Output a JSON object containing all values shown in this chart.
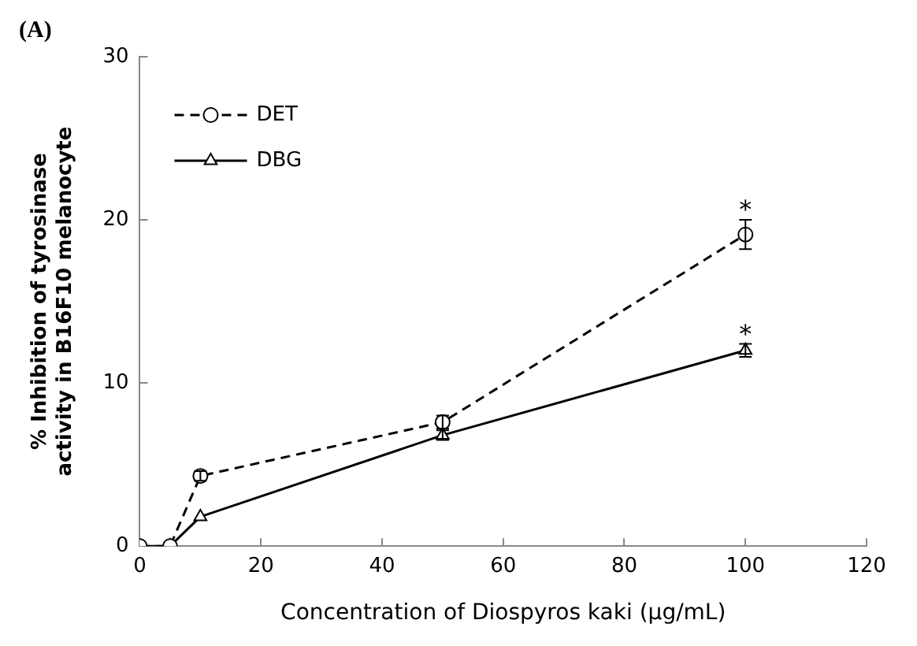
{
  "chart_data": {
    "type": "line",
    "xlabel": "Concentration of Diospyros kaki (μg/mL)",
    "ylabel": "% Inhibition of tyrosinase\nactivity in B16F10 melanocyte",
    "x": [
      0,
      5,
      10,
      50,
      100
    ],
    "series": [
      {
        "name": "DET",
        "color": "#000000",
        "values": [
          0,
          0,
          4.3,
          7.6,
          19.1
        ],
        "errors": [
          null,
          null,
          0.3,
          0.4,
          0.9
        ],
        "value_labels": [
          null,
          null,
          null,
          null,
          "*"
        ],
        "marker": "circle",
        "line_style": "dashed"
      },
      {
        "name": "DBG",
        "color": "#000000",
        "values": [
          0,
          0,
          1.8,
          6.8,
          12.0
        ],
        "errors": [
          null,
          null,
          null,
          0.3,
          0.4
        ],
        "value_labels": [
          null,
          null,
          null,
          null,
          "*"
        ],
        "marker": "triangle",
        "line_style": "solid"
      }
    ],
    "xlim": [
      0,
      120
    ],
    "xticks": [
      0,
      20,
      40,
      60,
      80,
      100,
      120
    ],
    "ylim": [
      0,
      30
    ],
    "yticks": [
      0,
      10,
      20,
      30
    ],
    "grid": false,
    "legend": "top left",
    "annotations": [
      "(A)"
    ]
  }
}
